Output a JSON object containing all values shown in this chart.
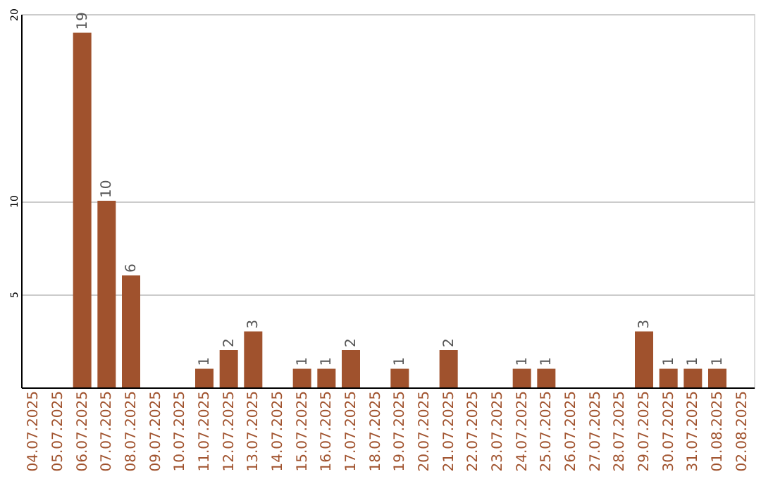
{
  "chart_data": {
    "type": "bar",
    "categories": [
      "04.07.2025",
      "05.07.2025",
      "06.07.2025",
      "07.07.2025",
      "08.07.2025",
      "09.07.2025",
      "10.07.2025",
      "11.07.2025",
      "12.07.2025",
      "13.07.2025",
      "14.07.2025",
      "15.07.2025",
      "16.07.2025",
      "17.07.2025",
      "18.07.2025",
      "19.07.2025",
      "20.07.2025",
      "21.07.2025",
      "22.07.2025",
      "23.07.2025",
      "24.07.2025",
      "25.07.2025",
      "26.07.2025",
      "27.07.2025",
      "28.07.2025",
      "29.07.2025",
      "30.07.2025",
      "31.07.2025",
      "01.08.2025",
      "02.08.2025"
    ],
    "values": [
      0,
      0,
      19,
      10,
      6,
      0,
      0,
      1,
      2,
      3,
      0,
      1,
      1,
      2,
      0,
      1,
      0,
      2,
      0,
      0,
      1,
      1,
      0,
      0,
      0,
      3,
      1,
      1,
      1,
      0
    ],
    "value_labels": [
      null,
      null,
      "19",
      "10",
      "6",
      null,
      null,
      "1",
      "2",
      "3",
      null,
      "1",
      "1",
      "2",
      null,
      "1",
      null,
      "2",
      null,
      null,
      "1",
      "1",
      null,
      null,
      null,
      "3",
      "1",
      "1",
      "1",
      null
    ],
    "color": "#a0522d",
    "ylim": [
      0,
      20
    ],
    "yticks": [
      5,
      10,
      20
    ],
    "grid": "y"
  }
}
